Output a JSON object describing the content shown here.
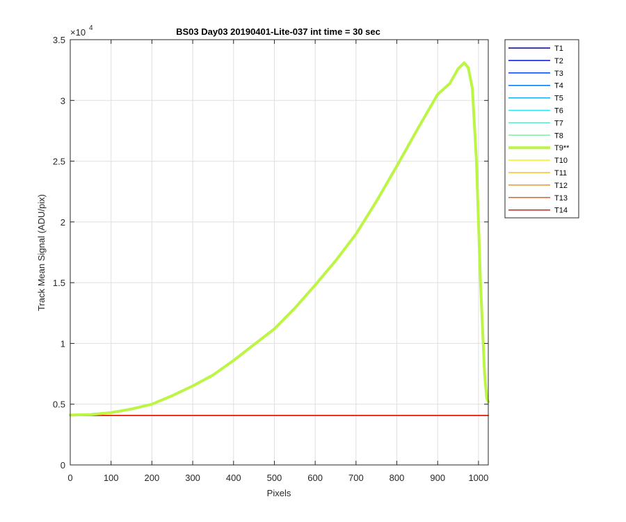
{
  "chart_data": {
    "type": "line",
    "title": "BS03 Day03 20190401-Lite-037 int time = 30 sec",
    "xlabel": "Pixels",
    "ylabel": "Track Mean Signal (ADU/pix)",
    "y_exponent_label": "×10",
    "y_exponent_power": "4",
    "xlim": [
      0,
      1024
    ],
    "ylim": [
      0,
      35000
    ],
    "xticks": [
      0,
      100,
      200,
      300,
      400,
      500,
      600,
      700,
      800,
      900,
      1000
    ],
    "xtick_labels": [
      "0",
      "100",
      "200",
      "300",
      "400",
      "500",
      "600",
      "700",
      "800",
      "900",
      "1000"
    ],
    "yticks": [
      0,
      5000,
      10000,
      15000,
      20000,
      25000,
      30000,
      35000
    ],
    "ytick_labels": [
      "0",
      "0.5",
      "1",
      "1.5",
      "2",
      "2.5",
      "3",
      "3.5"
    ],
    "grid": true,
    "legend_position": "outside-right",
    "series": [
      {
        "name": "T1",
        "color": "#00008f",
        "width": 1.5,
        "highlight": false,
        "x": [
          0,
          1024
        ],
        "y": [
          4070,
          4070
        ]
      },
      {
        "name": "T2",
        "color": "#0015c8",
        "width": 1.5,
        "highlight": false,
        "x": [
          0,
          1024
        ],
        "y": [
          4070,
          4070
        ]
      },
      {
        "name": "T3",
        "color": "#0044e6",
        "width": 1.5,
        "highlight": false,
        "x": [
          0,
          1024
        ],
        "y": [
          4070,
          4070
        ]
      },
      {
        "name": "T4",
        "color": "#0075f4",
        "width": 1.5,
        "highlight": false,
        "x": [
          0,
          1024
        ],
        "y": [
          4070,
          4070
        ]
      },
      {
        "name": "T5",
        "color": "#10a8f4",
        "width": 1.5,
        "highlight": false,
        "x": [
          0,
          1024
        ],
        "y": [
          4070,
          4070
        ]
      },
      {
        "name": "T6",
        "color": "#2de3f0",
        "width": 1.5,
        "highlight": false,
        "x": [
          0,
          1024
        ],
        "y": [
          4070,
          4070
        ]
      },
      {
        "name": "T7",
        "color": "#5ae6c8",
        "width": 1.5,
        "highlight": false,
        "x": [
          0,
          1024
        ],
        "y": [
          4070,
          4070
        ]
      },
      {
        "name": "T8",
        "color": "#86eda4",
        "width": 1.5,
        "highlight": false,
        "x": [
          0,
          1024
        ],
        "y": [
          4070,
          4070
        ]
      },
      {
        "name": "T9**",
        "color": "#bcf544",
        "width": 4,
        "highlight": true,
        "x": [
          0,
          50,
          100,
          150,
          200,
          250,
          300,
          350,
          400,
          450,
          500,
          550,
          600,
          650,
          700,
          750,
          800,
          850,
          900,
          930,
          950,
          965,
          975,
          985,
          995,
          1005,
          1015,
          1020,
          1024
        ],
        "y": [
          4100,
          4150,
          4300,
          4600,
          5000,
          5700,
          6500,
          7400,
          8600,
          9900,
          11200,
          12900,
          14800,
          16800,
          19000,
          21700,
          24600,
          27600,
          30500,
          31400,
          32600,
          33100,
          32700,
          31000,
          25000,
          15000,
          7500,
          5500,
          5200
        ]
      },
      {
        "name": "T10",
        "color": "#f0f030",
        "width": 1.5,
        "highlight": false,
        "x": [
          0,
          1024
        ],
        "y": [
          4070,
          4070
        ]
      },
      {
        "name": "T11",
        "color": "#f2c21e",
        "width": 1.5,
        "highlight": false,
        "x": [
          0,
          1024
        ],
        "y": [
          4070,
          4070
        ]
      },
      {
        "name": "T12",
        "color": "#f59218",
        "width": 1.5,
        "highlight": false,
        "x": [
          0,
          1024
        ],
        "y": [
          4070,
          4070
        ]
      },
      {
        "name": "T13",
        "color": "#f25a14",
        "width": 1.5,
        "highlight": false,
        "x": [
          0,
          1024
        ],
        "y": [
          4070,
          4070
        ]
      },
      {
        "name": "T14",
        "color": "#e6180e",
        "width": 1.5,
        "highlight": false,
        "x": [
          0,
          1024
        ],
        "y": [
          4070,
          4070
        ]
      }
    ]
  }
}
